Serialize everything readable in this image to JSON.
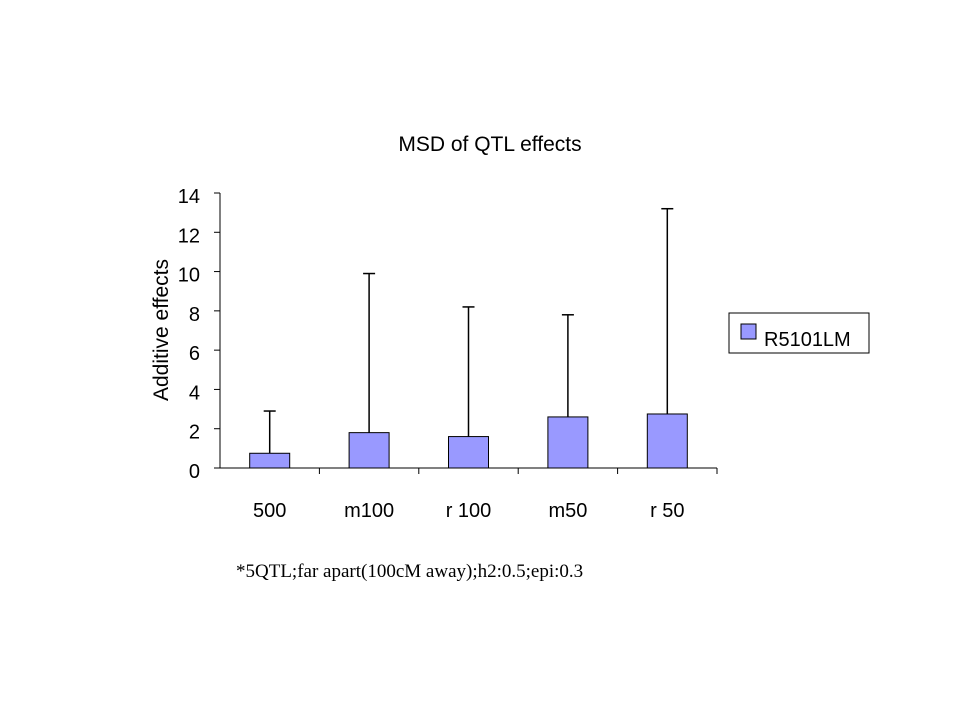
{
  "chart_data": {
    "type": "bar",
    "title": "MSD of QTL effects",
    "ylabel": "Additive effects",
    "xlabel": "",
    "categories": [
      "500",
      "m100",
      "r 100",
      "m50",
      "r 50"
    ],
    "series": [
      {
        "name": "R5101LM",
        "values": [
          0.75,
          1.8,
          1.6,
          2.6,
          2.75
        ],
        "error_upper": [
          2.9,
          9.9,
          8.2,
          7.8,
          13.2
        ],
        "color": "#9999ff"
      }
    ],
    "ylim": [
      0,
      14
    ],
    "yticks": [
      "0",
      "2",
      "4",
      "6",
      "8",
      "10",
      "12",
      "14"
    ],
    "grid": false,
    "legend_position": "right"
  },
  "footnote": "*5QTL;far apart(100cM away);h2:0.5;epi:0.3"
}
